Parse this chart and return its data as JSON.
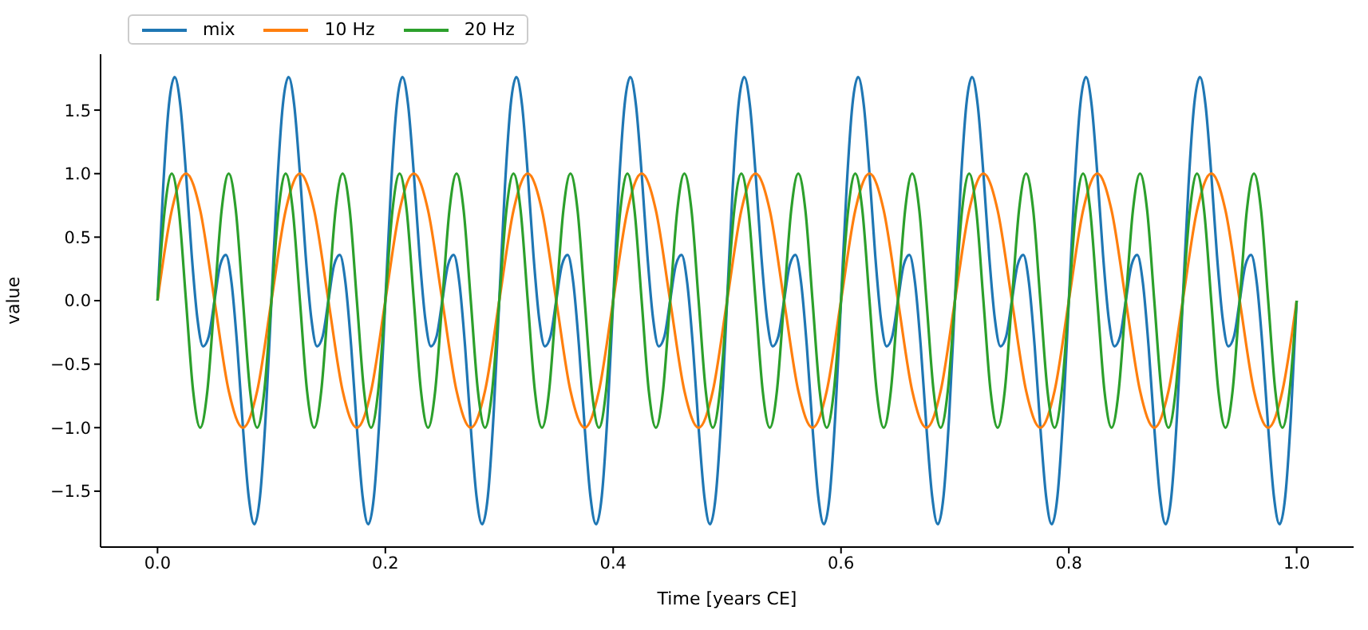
{
  "chart_data": {
    "type": "line",
    "xlabel": "Time [years CE]",
    "ylabel": "value",
    "xlim": [
      -0.05,
      1.05
    ],
    "ylim": [
      -1.94,
      1.94
    ],
    "xticks": [
      {
        "value": 0,
        "label": "0.0"
      },
      {
        "value": 0.2,
        "label": "0.2"
      },
      {
        "value": 0.4,
        "label": "0.4"
      },
      {
        "value": 0.6,
        "label": "0.6"
      },
      {
        "value": 0.8,
        "label": "0.8"
      },
      {
        "value": 1,
        "label": "1.0"
      }
    ],
    "yticks": [
      {
        "value": -1.5,
        "label": "−1.5"
      },
      {
        "value": -1,
        "label": "−1.0"
      },
      {
        "value": -0.5,
        "label": "−0.5"
      },
      {
        "value": 0,
        "label": "0.0"
      },
      0.5,
      {
        "value": 1,
        "label": "1.0"
      },
      1.5
    ],
    "grid": false,
    "legend": "top left",
    "marker": "none",
    "line_style": "solid",
    "series": [
      {
        "name": "mix",
        "color": "#1f77b4",
        "x": [
          0,
          0.005,
          0.01,
          0.015,
          0.02,
          0.025,
          0.03,
          0.035,
          0.04,
          0.045,
          0.05,
          0.055,
          0.06,
          0.065,
          0.07,
          0.075,
          0.08,
          0.085,
          0.09,
          0.095,
          0.1,
          0.105,
          0.11,
          0.115,
          0.12,
          0.125,
          0.13,
          0.135,
          0.14,
          0.145,
          0.15,
          0.155,
          0.16,
          0.165,
          0.17,
          0.175,
          0.18,
          0.185,
          0.19,
          0.195,
          0.2,
          0.205,
          0.21,
          0.215,
          0.22,
          0.225,
          0.23,
          0.235,
          0.24,
          0.245,
          0.25,
          0.255,
          0.26,
          0.265,
          0.27,
          0.275,
          0.28,
          0.285,
          0.29,
          0.295,
          0.3,
          0.305,
          0.31,
          0.315,
          0.32,
          0.325,
          0.33,
          0.335,
          0.34,
          0.345,
          0.35,
          0.355,
          0.36,
          0.365,
          0.37,
          0.375,
          0.38,
          0.385,
          0.39,
          0.395,
          0.4,
          0.405,
          0.41,
          0.415,
          0.42,
          0.425,
          0.43,
          0.435,
          0.44,
          0.445,
          0.45,
          0.455,
          0.46,
          0.465,
          0.47,
          0.475,
          0.48,
          0.485,
          0.49,
          0.495,
          0.5,
          0.505,
          0.51,
          0.515,
          0.52,
          0.525,
          0.53,
          0.535,
          0.54,
          0.545,
          0.55,
          0.555,
          0.56,
          0.565,
          0.57,
          0.575,
          0.58,
          0.585,
          0.59,
          0.595,
          0.6,
          0.605,
          0.61,
          0.615,
          0.62,
          0.625,
          0.63,
          0.635,
          0.64,
          0.645,
          0.65,
          0.655,
          0.66,
          0.665,
          0.67,
          0.675,
          0.68,
          0.685,
          0.69,
          0.695,
          0.7,
          0.705,
          0.71,
          0.715,
          0.72,
          0.725,
          0.73,
          0.735,
          0.74,
          0.745,
          0.75,
          0.755,
          0.76,
          0.765,
          0.77,
          0.775,
          0.78,
          0.785,
          0.79,
          0.795,
          0.8,
          0.805,
          0.81,
          0.815,
          0.82,
          0.825,
          0.83,
          0.835,
          0.84,
          0.845,
          0.85,
          0.855,
          0.86,
          0.865,
          0.87,
          0.875,
          0.88,
          0.885,
          0.89,
          0.895,
          0.9,
          0.905,
          0.91,
          0.915,
          0.92,
          0.925,
          0.93,
          0.935,
          0.94,
          0.945,
          0.95,
          0.955,
          0.96,
          0.965,
          0.97,
          0.975,
          0.98,
          0.985,
          0.99,
          0.995,
          1
        ],
        "values": [
          0,
          0.9,
          1.54,
          1.76,
          1.54,
          1,
          0.36,
          -0.14,
          -0.36,
          -0.28,
          0,
          0.28,
          0.36,
          0.14,
          -0.36,
          -1,
          -1.54,
          -1.76,
          -1.54,
          -0.9,
          0,
          0.9,
          1.54,
          1.76,
          1.54,
          1,
          0.36,
          -0.14,
          -0.36,
          -0.28,
          0,
          0.28,
          0.36,
          0.14,
          -0.36,
          -1,
          -1.54,
          -1.76,
          -1.54,
          -0.9,
          0,
          0.9,
          1.54,
          1.76,
          1.54,
          1,
          0.36,
          -0.14,
          -0.36,
          -0.28,
          0,
          0.28,
          0.36,
          0.14,
          -0.36,
          -1,
          -1.54,
          -1.76,
          -1.54,
          -0.9,
          0,
          0.9,
          1.54,
          1.76,
          1.54,
          1,
          0.36,
          -0.14,
          -0.36,
          -0.28,
          0,
          0.28,
          0.36,
          0.14,
          -0.36,
          -1,
          -1.54,
          -1.76,
          -1.54,
          -0.9,
          0,
          0.9,
          1.54,
          1.76,
          1.54,
          1,
          0.36,
          -0.14,
          -0.36,
          -0.28,
          0,
          0.28,
          0.36,
          0.14,
          -0.36,
          -1,
          -1.54,
          -1.76,
          -1.54,
          -0.9,
          0,
          0.9,
          1.54,
          1.76,
          1.54,
          1,
          0.36,
          -0.14,
          -0.36,
          -0.28,
          0,
          0.28,
          0.36,
          0.14,
          -0.36,
          -1,
          -1.54,
          -1.76,
          -1.54,
          -0.9,
          0,
          0.9,
          1.54,
          1.76,
          1.54,
          1,
          0.36,
          -0.14,
          -0.36,
          -0.28,
          0,
          0.28,
          0.36,
          0.14,
          -0.36,
          -1,
          -1.54,
          -1.76,
          -1.54,
          -0.9,
          0,
          0.9,
          1.54,
          1.76,
          1.54,
          1,
          0.36,
          -0.14,
          -0.36,
          -0.28,
          0,
          0.28,
          0.36,
          0.14,
          -0.36,
          -1,
          -1.54,
          -1.76,
          -1.54,
          -0.9,
          0,
          0.9,
          1.54,
          1.76,
          1.54,
          1,
          0.36,
          -0.14,
          -0.36,
          -0.28,
          0,
          0.28,
          0.36,
          0.14,
          -0.36,
          -1,
          -1.54,
          -1.76,
          -1.54,
          -0.9,
          0,
          0.9,
          1.54,
          1.76,
          1.54,
          1,
          0.36,
          -0.14,
          -0.36,
          -0.28,
          0,
          0.28,
          0.36,
          0.14,
          -0.36,
          -1,
          -1.54,
          -1.76,
          -1.54,
          -0.9,
          0
        ]
      },
      {
        "name": "10 Hz",
        "color": "#ff7f0e",
        "x": [
          0,
          0.0125,
          0.025,
          0.0375,
          0.05,
          0.0625,
          0.075,
          0.0875,
          0.1,
          0.1125,
          0.125,
          0.1375,
          0.15,
          0.1625,
          0.175,
          0.1875,
          0.2,
          0.2125,
          0.225,
          0.2375,
          0.25,
          0.2625,
          0.275,
          0.2875,
          0.3,
          0.3125,
          0.325,
          0.3375,
          0.35,
          0.3625,
          0.375,
          0.3875,
          0.4,
          0.4125,
          0.425,
          0.4375,
          0.45,
          0.4625,
          0.475,
          0.4875,
          0.5,
          0.5125,
          0.525,
          0.5375,
          0.55,
          0.5625,
          0.575,
          0.5875,
          0.6,
          0.6125,
          0.625,
          0.6375,
          0.65,
          0.6625,
          0.675,
          0.6875,
          0.7,
          0.7125,
          0.725,
          0.7375,
          0.75,
          0.7625,
          0.775,
          0.7875,
          0.8,
          0.8125,
          0.825,
          0.8375,
          0.85,
          0.8625,
          0.875,
          0.8875,
          0.9,
          0.9125,
          0.925,
          0.9375,
          0.95,
          0.9625,
          0.975,
          0.9875,
          1
        ],
        "values": [
          0,
          0.71,
          1,
          0.71,
          0,
          -0.71,
          -1,
          -0.71,
          0,
          0.71,
          1,
          0.71,
          0,
          -0.71,
          -1,
          -0.71,
          0,
          0.71,
          1,
          0.71,
          0,
          -0.71,
          -1,
          -0.71,
          0,
          0.71,
          1,
          0.71,
          0,
          -0.71,
          -1,
          -0.71,
          0,
          0.71,
          1,
          0.71,
          0,
          -0.71,
          -1,
          -0.71,
          0,
          0.71,
          1,
          0.71,
          0,
          -0.71,
          -1,
          -0.71,
          0,
          0.71,
          1,
          0.71,
          0,
          -0.71,
          -1,
          -0.71,
          0,
          0.71,
          1,
          0.71,
          0,
          -0.71,
          -1,
          -0.71,
          0,
          0.71,
          1,
          0.71,
          0,
          -0.71,
          -1,
          -0.71,
          0,
          0.71,
          1,
          0.71,
          0,
          -0.71,
          -1,
          -0.71,
          0
        ]
      },
      {
        "name": "20 Hz",
        "color": "#2ca02c",
        "x": [
          0,
          0.00625,
          0.0125,
          0.01875,
          0.025,
          0.03125,
          0.0375,
          0.04375,
          0.05,
          0.05625,
          0.0625,
          0.06875,
          0.075,
          0.08125,
          0.0875,
          0.09375,
          0.1,
          0.10625,
          0.1125,
          0.11875,
          0.125,
          0.13125,
          0.1375,
          0.14375,
          0.15,
          0.15625,
          0.1625,
          0.16875,
          0.175,
          0.18125,
          0.1875,
          0.19375,
          0.2,
          0.20625,
          0.2125,
          0.21875,
          0.225,
          0.23125,
          0.2375,
          0.24375,
          0.25,
          0.25625,
          0.2625,
          0.26875,
          0.275,
          0.28125,
          0.2875,
          0.29375,
          0.3,
          0.30625,
          0.3125,
          0.31875,
          0.325,
          0.33125,
          0.3375,
          0.34375,
          0.35,
          0.35625,
          0.3625,
          0.36875,
          0.375,
          0.38125,
          0.3875,
          0.39375,
          0.4,
          0.40625,
          0.4125,
          0.41875,
          0.425,
          0.43125,
          0.4375,
          0.44375,
          0.45,
          0.45625,
          0.4625,
          0.46875,
          0.475,
          0.48125,
          0.4875,
          0.49375,
          0.5,
          0.50625,
          0.5125,
          0.51875,
          0.525,
          0.53125,
          0.5375,
          0.54375,
          0.55,
          0.55625,
          0.5625,
          0.56875,
          0.575,
          0.58125,
          0.5875,
          0.59375,
          0.6,
          0.60625,
          0.6125,
          0.61875,
          0.625,
          0.63125,
          0.6375,
          0.64375,
          0.65,
          0.65625,
          0.6625,
          0.66875,
          0.675,
          0.68125,
          0.6875,
          0.69375,
          0.7,
          0.70625,
          0.7125,
          0.71875,
          0.725,
          0.73125,
          0.7375,
          0.74375,
          0.75,
          0.75625,
          0.7625,
          0.76875,
          0.775,
          0.78125,
          0.7875,
          0.79375,
          0.8,
          0.80625,
          0.8125,
          0.81875,
          0.825,
          0.83125,
          0.8375,
          0.84375,
          0.85,
          0.85625,
          0.8625,
          0.86875,
          0.875,
          0.88125,
          0.8875,
          0.89375,
          0.9,
          0.90625,
          0.9125,
          0.91875,
          0.925,
          0.93125,
          0.9375,
          0.94375,
          0.95,
          0.95625,
          0.9625,
          0.96875,
          0.975,
          0.98125,
          0.9875,
          0.99375,
          1
        ],
        "values": [
          0,
          0.71,
          1,
          0.71,
          0,
          -0.71,
          -1,
          -0.71,
          0,
          0.71,
          1,
          0.71,
          0,
          -0.71,
          -1,
          -0.71,
          0,
          0.71,
          1,
          0.71,
          0,
          -0.71,
          -1,
          -0.71,
          0,
          0.71,
          1,
          0.71,
          0,
          -0.71,
          -1,
          -0.71,
          0,
          0.71,
          1,
          0.71,
          0,
          -0.71,
          -1,
          -0.71,
          0,
          0.71,
          1,
          0.71,
          0,
          -0.71,
          -1,
          -0.71,
          0,
          0.71,
          1,
          0.71,
          0,
          -0.71,
          -1,
          -0.71,
          0,
          0.71,
          1,
          0.71,
          0,
          -0.71,
          -1,
          -0.71,
          0,
          0.71,
          1,
          0.71,
          0,
          -0.71,
          -1,
          -0.71,
          0,
          0.71,
          1,
          0.71,
          0,
          -0.71,
          -1,
          -0.71,
          0,
          0.71,
          1,
          0.71,
          0,
          -0.71,
          -1,
          -0.71,
          0,
          0.71,
          1,
          0.71,
          0,
          -0.71,
          -1,
          -0.71,
          0,
          0.71,
          1,
          0.71,
          0,
          -0.71,
          -1,
          -0.71,
          0,
          0.71,
          1,
          0.71,
          0,
          -0.71,
          -1,
          -0.71,
          0,
          0.71,
          1,
          0.71,
          0,
          -0.71,
          -1,
          -0.71,
          0,
          0.71,
          1,
          0.71,
          0,
          -0.71,
          -1,
          -0.71,
          0,
          0.71,
          1,
          0.71,
          0,
          -0.71,
          -1,
          -0.71,
          0,
          0.71,
          1,
          0.71,
          0,
          -0.71,
          -1,
          -0.71,
          0,
          0.71,
          1,
          0.71,
          0,
          -0.71,
          -1,
          -0.71,
          0,
          0.71,
          1,
          0.71,
          0,
          -0.71,
          -1,
          -0.71,
          0
        ]
      }
    ]
  }
}
